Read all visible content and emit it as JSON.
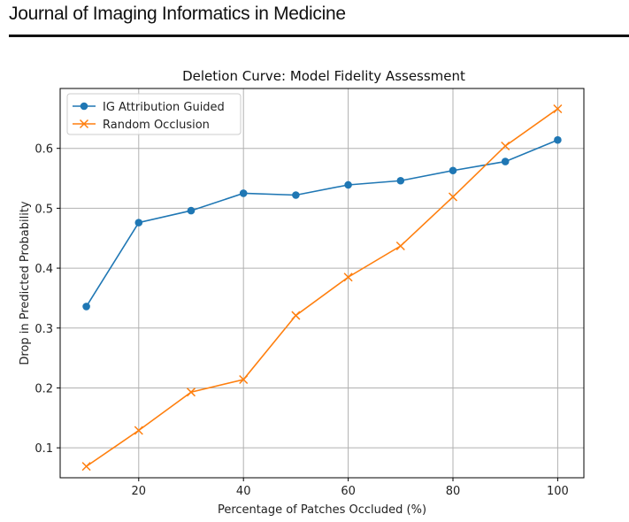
{
  "header": {
    "journal_title": "Journal of Imaging Informatics in Medicine"
  },
  "chart_data": {
    "type": "line",
    "title": "Deletion Curve: Model Fidelity Assessment",
    "xlabel": "Percentage of Patches Occluded (%)",
    "ylabel": "Drop in Predicted Probability",
    "x": [
      10,
      20,
      30,
      40,
      50,
      60,
      70,
      80,
      90,
      100
    ],
    "xlim": [
      5,
      105
    ],
    "ylim": [
      0.05,
      0.7
    ],
    "xticks": [
      20,
      40,
      60,
      80,
      100
    ],
    "yticks": [
      0.1,
      0.2,
      0.3,
      0.4,
      0.5,
      0.6
    ],
    "ytick_labels": [
      "0.1",
      "0.2",
      "0.3",
      "0.4",
      "0.5",
      "0.6"
    ],
    "grid": true,
    "legend_position": "top-left",
    "series": [
      {
        "name": "IG Attribution Guided",
        "color": "#1f77b4",
        "marker": "circle",
        "values": [
          0.336,
          0.476,
          0.496,
          0.525,
          0.522,
          0.539,
          0.546,
          0.563,
          0.578,
          0.614
        ]
      },
      {
        "name": "Random Occlusion",
        "color": "#ff7f0e",
        "marker": "x",
        "values": [
          0.069,
          0.129,
          0.193,
          0.214,
          0.321,
          0.385,
          0.437,
          0.519,
          0.604,
          0.666
        ]
      }
    ]
  }
}
